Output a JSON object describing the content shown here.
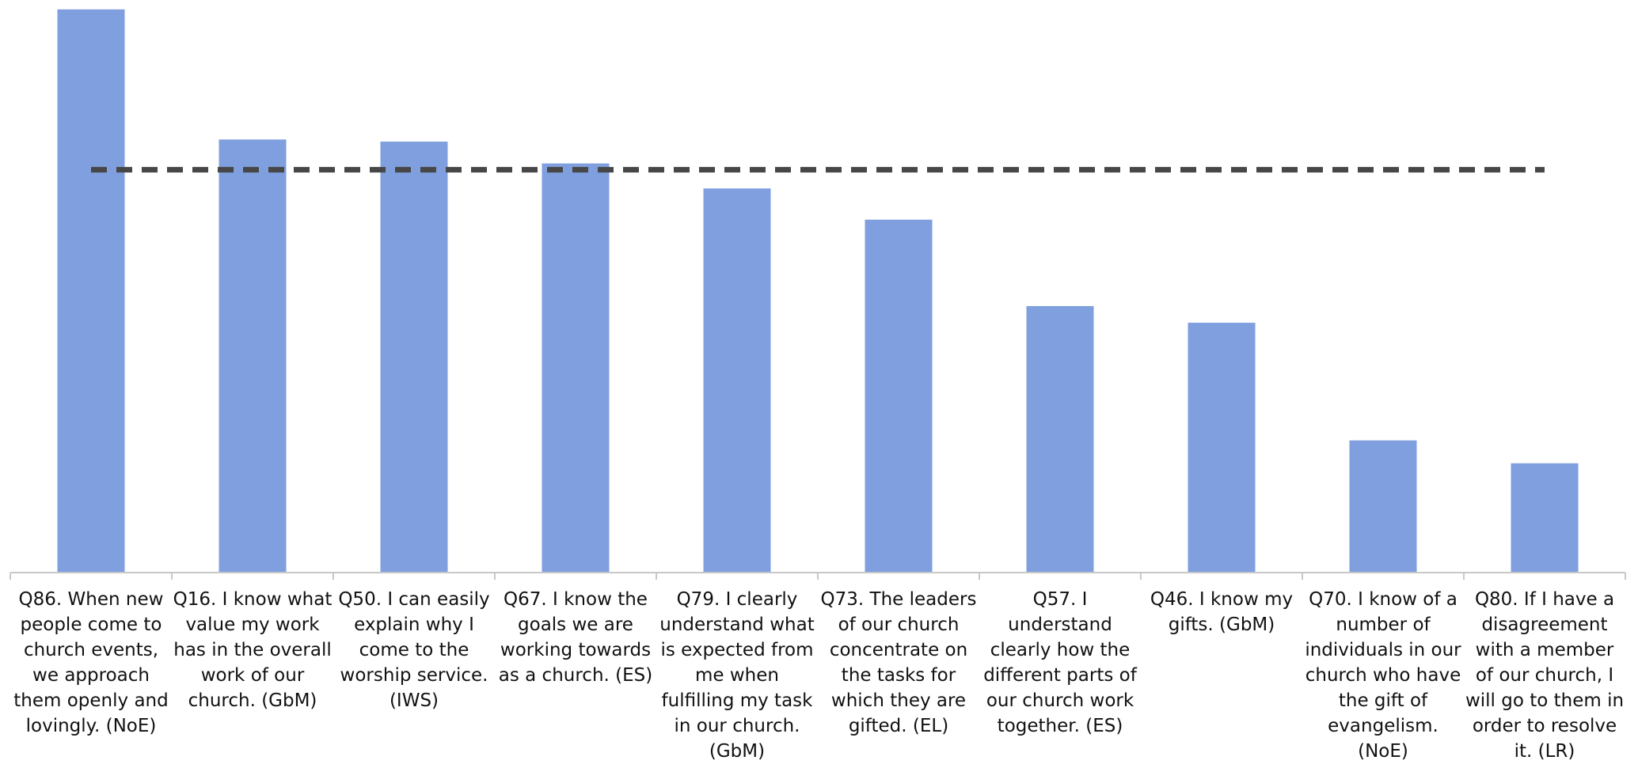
{
  "chart_data": {
    "type": "bar",
    "categories": [
      "Q86. When new people come to church events, we approach them openly and lovingly. (NoE)",
      "Q16. I know what value my work has in the overall work of our church. (GbM)",
      "Q50. I can easily explain why I come to the worship service. (IWS)",
      "Q67. I know the goals we are working towards as a church. (ES)",
      "Q79. I clearly understand what is expected from me when fulfilling my task in our church. (GbM)",
      "Q73. The leaders of our church concentrate on the tasks for which they are gifted. (EL)",
      "Q57. I understand clearly how the different parts of our church work together. (ES)",
      "Q46. I know my gifts. (GbM)",
      "Q70. I know of a number of individuals in our church who have the gift of evangelism. (NoE)",
      "Q80. If I have a disagreement with a member of our church, I will go to them in order to resolve it. (LR)"
    ],
    "values": [
      54.1,
      41.6,
      41.4,
      39.3,
      36.9,
      33.9,
      25.6,
      24.0,
      12.7,
      10.5
    ],
    "color": "#7f9fdf",
    "reference_line": 38.7,
    "reference_color": "#474747",
    "ylim": [
      0,
      55
    ]
  }
}
